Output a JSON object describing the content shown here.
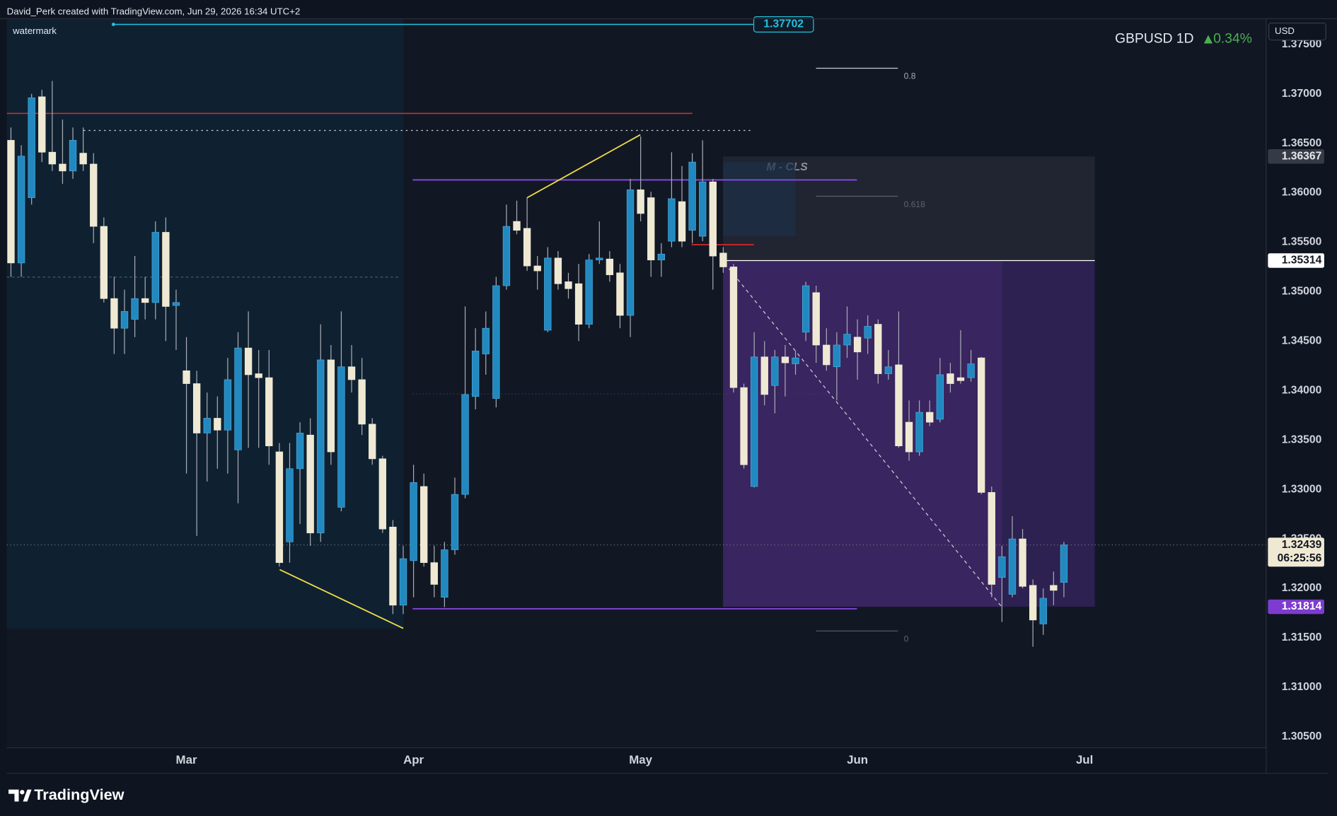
{
  "header": {
    "credit": "David_Perk created with TradingView.com, Jun 29, 2026 16:34 UTC+2",
    "watermark": "watermark",
    "brand": "TradingView"
  },
  "chart_data": {
    "type": "candlestick",
    "title": "GBPUSD 1D",
    "change": "0.34%",
    "currency": "USD",
    "xlim": [
      -0.4,
      121.6
    ],
    "xticks": [
      {
        "value": 17,
        "label": "Mar"
      },
      {
        "value": 39,
        "label": "Apr"
      },
      {
        "value": 61,
        "label": "May"
      },
      {
        "value": 82,
        "label": "Jun"
      },
      {
        "value": 104,
        "label": "Jul"
      }
    ],
    "ylim": [
      1.30388,
      1.37759
    ],
    "yticks": [
      {
        "value": 1.305,
        "label": "1.30500"
      },
      {
        "value": 1.31,
        "label": "1.31000"
      },
      {
        "value": 1.315,
        "label": "1.31500"
      },
      {
        "value": 1.32,
        "label": "1.32000"
      },
      {
        "value": 1.325,
        "label": "1.32500"
      },
      {
        "value": 1.33,
        "label": "1.33000"
      },
      {
        "value": 1.335,
        "label": "1.33500"
      },
      {
        "value": 1.34,
        "label": "1.34000"
      },
      {
        "value": 1.345,
        "label": "1.34500"
      },
      {
        "value": 1.35,
        "label": "1.35000"
      },
      {
        "value": 1.355,
        "label": "1.35500"
      },
      {
        "value": 1.36,
        "label": "1.36000"
      },
      {
        "value": 1.365,
        "label": "1.36500"
      },
      {
        "value": 1.37,
        "label": "1.37000"
      },
      {
        "value": 1.375,
        "label": "1.37500"
      }
    ],
    "up_color": "#2189c0",
    "down_color": "#efe9d3",
    "open": [
      1.3653,
      1.3529,
      1.3595,
      1.3697,
      1.3641,
      1.3629,
      1.3622,
      1.364,
      1.3629,
      1.3566,
      1.3493,
      1.3463,
      1.3472,
      1.3493,
      1.3489,
      1.356,
      1.3486,
      1.342,
      1.3407,
      1.3357,
      1.3372,
      1.336,
      1.334,
      1.3443,
      1.3417,
      1.3413,
      1.3338,
      1.3247,
      1.3321,
      1.3355,
      1.3256,
      1.3431,
      1.3282,
      1.3424,
      1.3411,
      1.3366,
      1.3331,
      1.3262,
      1.3183,
      1.3228,
      1.3303,
      1.3226,
      1.3191,
      1.3239,
      1.3295,
      1.3394,
      1.3437,
      1.3392,
      1.3506,
      1.3571,
      1.3564,
      1.3526,
      1.3461,
      1.3534,
      1.351,
      1.3508,
      1.3467,
      1.3532,
      1.3533,
      1.3519,
      1.3476,
      1.3603,
      1.3595,
      1.3532,
      1.3551,
      1.3591,
      1.3562,
      1.3556,
      1.3611,
      1.3539,
      1.3525,
      1.3403,
      1.3303,
      1.3434,
      1.3405,
      1.3434,
      1.3427,
      1.3459,
      1.3499,
      1.3446,
      1.3424,
      1.3446,
      1.3454,
      1.3453,
      1.3467,
      1.3417,
      1.3426,
      1.3368,
      1.3338,
      1.3378,
      1.3371,
      1.3417,
      1.3413,
      1.3413,
      1.3433,
      1.3297,
      1.3211,
      1.3194,
      1.325,
      1.3203,
      1.3164,
      1.3203,
      1.3206
    ],
    "high": [
      1.3666,
      1.3648,
      1.37,
      1.3704,
      1.3713,
      1.3674,
      1.3666,
      1.3666,
      1.364,
      1.3575,
      1.3515,
      1.3502,
      1.3536,
      1.3515,
      1.3571,
      1.3575,
      1.3502,
      1.3454,
      1.342,
      1.3398,
      1.3394,
      1.3433,
      1.3459,
      1.348,
      1.3441,
      1.3441,
      1.3347,
      1.3347,
      1.3368,
      1.3372,
      1.3467,
      1.3446,
      1.348,
      1.3446,
      1.3433,
      1.3372,
      1.3334,
      1.3269,
      1.3243,
      1.3325,
      1.3316,
      1.3243,
      1.3247,
      1.3312,
      1.3485,
      1.3463,
      1.348,
      1.3515,
      1.3588,
      1.3592,
      1.3595,
      1.3536,
      1.3545,
      1.3541,
      1.3519,
      1.3528,
      1.3538,
      1.3571,
      1.3541,
      1.3528,
      1.3614,
      1.3657,
      1.3601,
      1.3549,
      1.3641,
      1.3627,
      1.364,
      1.3653,
      1.3614,
      1.3545,
      1.3528,
      1.3407,
      1.3459,
      1.345,
      1.3441,
      1.3446,
      1.344,
      1.351,
      1.3506,
      1.3463,
      1.3459,
      1.3485,
      1.3472,
      1.3476,
      1.3472,
      1.3441,
      1.348,
      1.339,
      1.339,
      1.339,
      1.3433,
      1.3428,
      1.3461,
      1.3441,
      1.3434,
      1.3303,
      1.3243,
      1.3273,
      1.326,
      1.3209,
      1.32,
      1.3217,
      1.3247
    ],
    "low": [
      1.3515,
      1.3515,
      1.3588,
      1.3631,
      1.3622,
      1.3609,
      1.3614,
      1.3622,
      1.3549,
      1.3489,
      1.3437,
      1.3437,
      1.3454,
      1.3472,
      1.3472,
      1.345,
      1.3441,
      1.3316,
      1.3253,
      1.3308,
      1.3321,
      1.3316,
      1.3286,
      1.3342,
      1.3342,
      1.3325,
      1.3222,
      1.3226,
      1.3265,
      1.3243,
      1.3247,
      1.3325,
      1.3278,
      1.3398,
      1.3355,
      1.3325,
      1.3256,
      1.3174,
      1.3174,
      1.3191,
      1.3222,
      1.3191,
      1.3181,
      1.3234,
      1.3291,
      1.3381,
      1.3416,
      1.3383,
      1.3502,
      1.3558,
      1.3521,
      1.3502,
      1.3459,
      1.3502,
      1.3493,
      1.345,
      1.3463,
      1.3528,
      1.351,
      1.3463,
      1.3454,
      1.3571,
      1.3515,
      1.3515,
      1.3545,
      1.3545,
      1.3549,
      1.3551,
      1.3502,
      1.3519,
      1.3398,
      1.3321,
      1.3302,
      1.3385,
      1.3377,
      1.3394,
      1.3416,
      1.345,
      1.3428,
      1.342,
      1.339,
      1.3433,
      1.3411,
      1.3437,
      1.3407,
      1.3411,
      1.3342,
      1.3329,
      1.3334,
      1.3364,
      1.3368,
      1.3398,
      1.3407,
      1.3409,
      1.3295,
      1.3191,
      1.3166,
      1.3191,
      1.32,
      1.3141,
      1.3153,
      1.3183,
      1.3191
    ],
    "close": [
      1.3529,
      1.3637,
      1.3696,
      1.3641,
      1.3629,
      1.3622,
      1.3653,
      1.3629,
      1.3566,
      1.3493,
      1.3463,
      1.348,
      1.3493,
      1.3489,
      1.356,
      1.3485,
      1.3489,
      1.3407,
      1.3357,
      1.3372,
      1.336,
      1.3411,
      1.3443,
      1.3416,
      1.3413,
      1.3344,
      1.3226,
      1.3321,
      1.3357,
      1.3256,
      1.3431,
      1.3338,
      1.3424,
      1.3411,
      1.3366,
      1.3331,
      1.326,
      1.3183,
      1.323,
      1.3307,
      1.3226,
      1.3204,
      1.3239,
      1.3295,
      1.3396,
      1.344,
      1.3463,
      1.3506,
      1.3566,
      1.3562,
      1.3526,
      1.3521,
      1.3534,
      1.3508,
      1.3503,
      1.3467,
      1.3532,
      1.3534,
      1.3517,
      1.3476,
      1.3603,
      1.3579,
      1.3532,
      1.3538,
      1.3594,
      1.3551,
      1.3631,
      1.3611,
      1.3536,
      1.3525,
      1.3403,
      1.3325,
      1.3434,
      1.3396,
      1.3434,
      1.3428,
      1.3433,
      1.3506,
      1.3446,
      1.3426,
      1.3446,
      1.3457,
      1.3439,
      1.3465,
      1.3417,
      1.3424,
      1.3344,
      1.3338,
      1.3378,
      1.3368,
      1.3416,
      1.3407,
      1.341,
      1.3427,
      1.3297,
      1.3204,
      1.3232,
      1.325,
      1.3202,
      1.3168,
      1.319,
      1.3198,
      1.32439
    ],
    "alert_price": 1.37702,
    "zone_top": 1.36367,
    "zone_mid": 1.35314,
    "zone_bottom": 1.31814,
    "last_price": 1.32439,
    "countdown": "06:25:56",
    "zone_label": "M - CLS",
    "fib_levels": [
      0.8,
      0.618,
      0
    ]
  }
}
